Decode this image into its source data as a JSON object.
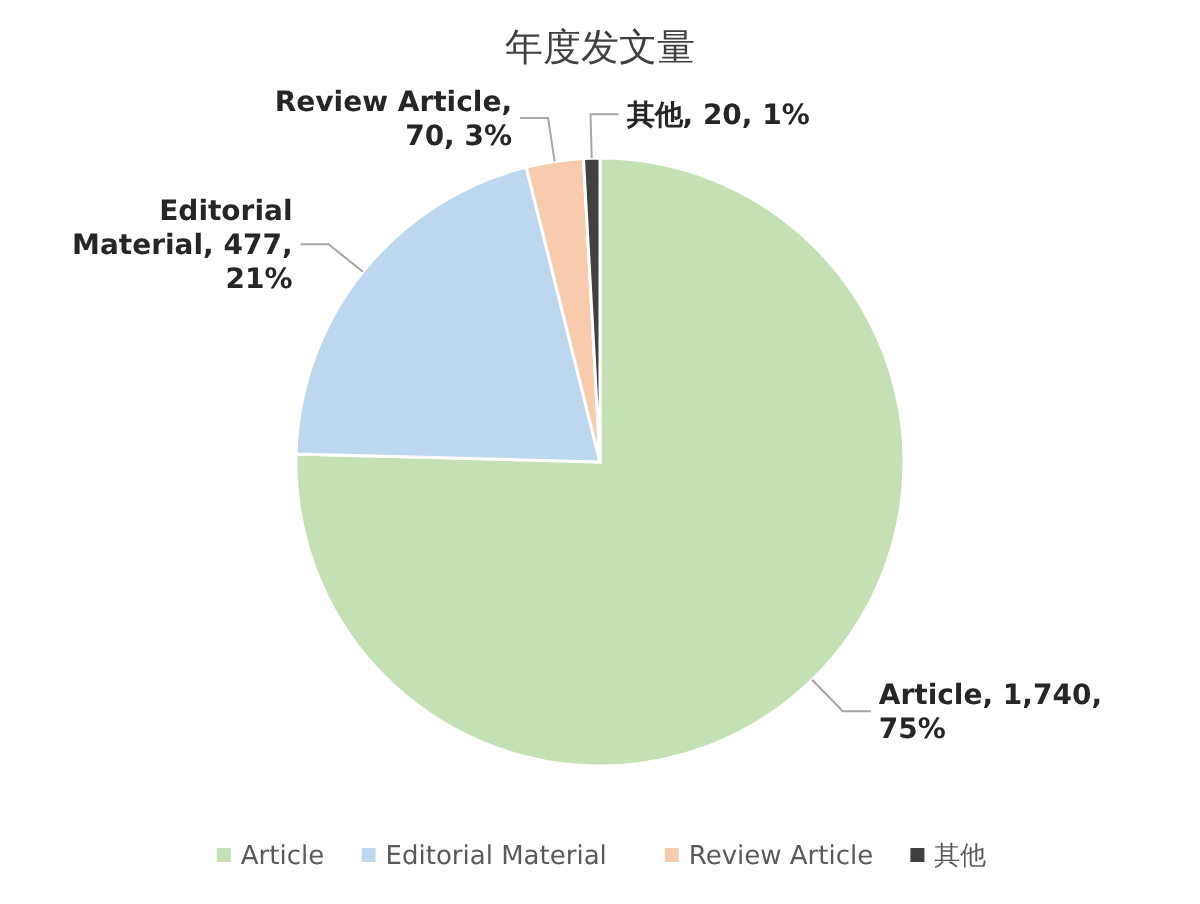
{
  "chart_data": {
    "type": "pie",
    "title": "年度发文量",
    "categories": [
      "Article",
      "Editorial Material",
      "Review Article",
      "其他"
    ],
    "values": [
      1740,
      477,
      70,
      20
    ],
    "colors": [
      "#c5e0b4",
      "#bdd7ee",
      "#f8cbad",
      "#404040"
    ],
    "value_labels": [
      "Article, 1,740, 75%",
      "Editorial Material, 477, 21%",
      "Review Article, 70, 3%",
      "其他, 20, 1%"
    ],
    "legend": "bottom"
  }
}
